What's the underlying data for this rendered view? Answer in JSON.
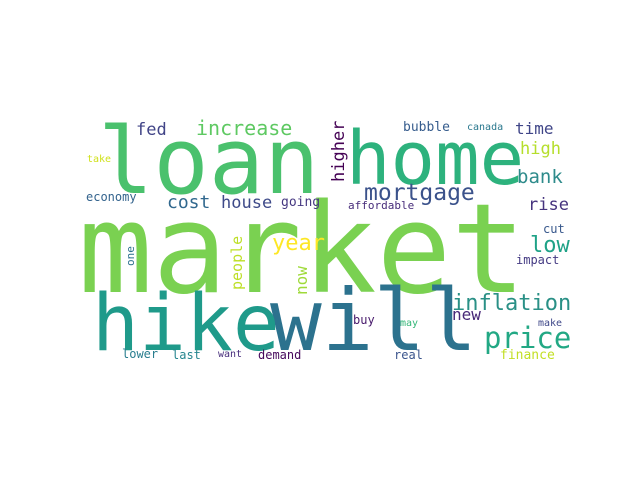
{
  "word_cloud": {
    "words": [
      {
        "text": "market",
        "weight": 100,
        "color": "#7ad151"
      },
      {
        "text": "loan",
        "weight": 82,
        "color": "#4ac16d"
      },
      {
        "text": "will",
        "weight": 78,
        "color": "#2c728e"
      },
      {
        "text": "hike",
        "weight": 74,
        "color": "#1f9a8a"
      },
      {
        "text": "home",
        "weight": 66,
        "color": "#2db27d"
      },
      {
        "text": "mortgage",
        "weight": 34,
        "color": "#3b528b"
      },
      {
        "text": "price",
        "weight": 30,
        "color": "#22a884"
      },
      {
        "text": "inflation",
        "weight": 26,
        "color": "#2a9086"
      },
      {
        "text": "year",
        "weight": 24,
        "color": "#fde725"
      },
      {
        "text": "low",
        "weight": 24,
        "color": "#1fa287"
      },
      {
        "text": "increase",
        "weight": 21,
        "color": "#5ec962"
      },
      {
        "text": "bank",
        "weight": 20,
        "color": "#2e8b8b"
      },
      {
        "text": "higher",
        "weight": 19,
        "color": "#440154"
      },
      {
        "text": "cost",
        "weight": 18,
        "color": "#31688e"
      },
      {
        "text": "house",
        "weight": 17,
        "color": "#3e4a89"
      },
      {
        "text": "fed",
        "weight": 17,
        "color": "#414487"
      },
      {
        "text": "high",
        "weight": 17,
        "color": "#b5de2b"
      },
      {
        "text": "rise",
        "weight": 17,
        "color": "#46337e"
      },
      {
        "text": "time",
        "weight": 16,
        "color": "#404688"
      },
      {
        "text": "new",
        "weight": 16,
        "color": "#482878"
      },
      {
        "text": "people",
        "weight": 15,
        "color": "#bddf26"
      },
      {
        "text": "now",
        "weight": 15,
        "color": "#9fda3a"
      },
      {
        "text": "going",
        "weight": 13,
        "color": "#453781"
      },
      {
        "text": "finance",
        "weight": 13,
        "color": "#c2df23"
      },
      {
        "text": "bubble",
        "weight": 13,
        "color": "#365c8d"
      },
      {
        "text": "economy",
        "weight": 12,
        "color": "#33638d"
      },
      {
        "text": "cut",
        "weight": 12,
        "color": "#38588c"
      },
      {
        "text": "impact",
        "weight": 12,
        "color": "#443a83"
      },
      {
        "text": "lower",
        "weight": 12,
        "color": "#287d8e"
      },
      {
        "text": "last",
        "weight": 12,
        "color": "#25858e"
      },
      {
        "text": "demand",
        "weight": 12,
        "color": "#46085c"
      },
      {
        "text": "real",
        "weight": 12,
        "color": "#3a548c"
      },
      {
        "text": "buy",
        "weight": 12,
        "color": "#481a6c"
      },
      {
        "text": "one",
        "weight": 11,
        "color": "#2d708e"
      },
      {
        "text": "affordable",
        "weight": 11,
        "color": "#472c7a"
      },
      {
        "text": "canada",
        "weight": 10,
        "color": "#2a788e"
      },
      {
        "text": "take",
        "weight": 10,
        "color": "#d0e11c"
      },
      {
        "text": "want",
        "weight": 10,
        "color": "#472e7c"
      },
      {
        "text": "may",
        "weight": 10,
        "color": "#35b779"
      },
      {
        "text": "make",
        "weight": 10,
        "color": "#3f4889"
      }
    ]
  }
}
